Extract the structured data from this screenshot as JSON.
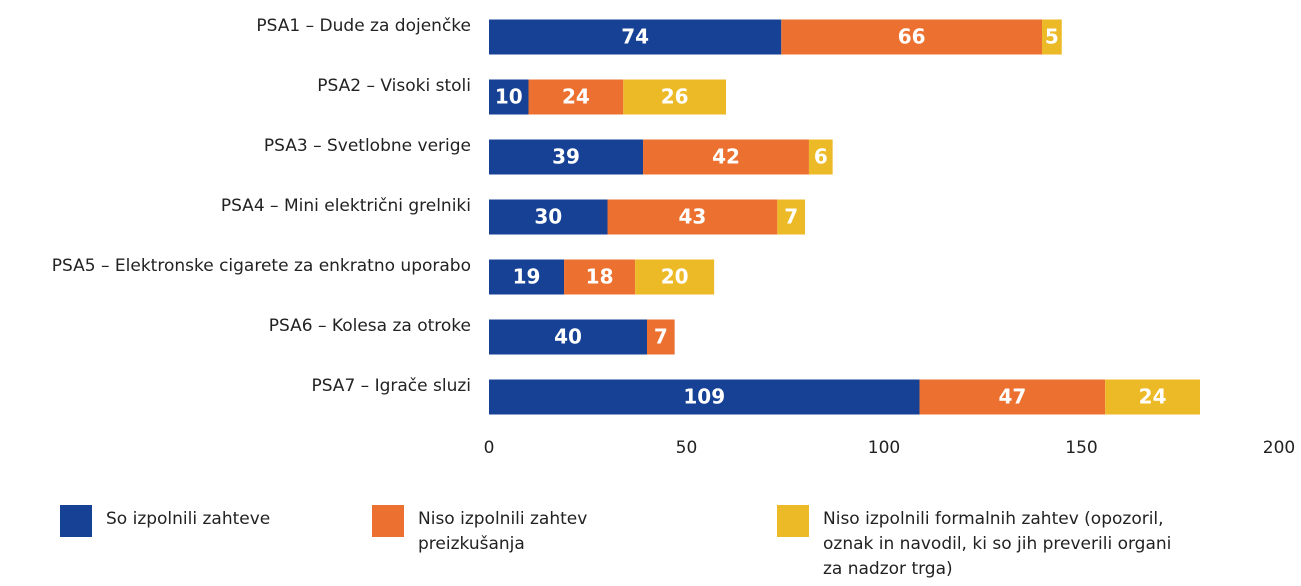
{
  "chart_data": {
    "type": "bar",
    "orientation": "horizontal",
    "stacked": true,
    "categories": [
      "PSA1 – Dude za dojenčke",
      "PSA2 – Visoki stoli",
      "PSA3 – Svetlobne verige",
      "PSA4 – Mini električni grelniki",
      "PSA5 – Elektronske cigarete za enkratno uporabo",
      "PSA6 – Kolesa za otroke",
      "PSA7 – Igrače sluzi"
    ],
    "series": [
      {
        "name": "So izpolnili zahteve",
        "color": "#164194",
        "values": [
          74,
          10,
          39,
          30,
          19,
          40,
          109
        ]
      },
      {
        "name": "Niso izpolnili zahtev preizkušanja",
        "color": "#ec7131",
        "values": [
          66,
          24,
          42,
          43,
          18,
          7,
          47
        ]
      },
      {
        "name": "Niso izpolnili formalnih zahtev (opozoril, oznak in navodil, ki so jih preverili organi za nadzor trga)",
        "color": "#ecba27",
        "values": [
          5,
          26,
          6,
          7,
          20,
          null,
          24
        ]
      }
    ],
    "xlim": [
      0,
      200
    ],
    "xticks": [
      0,
      50,
      100,
      150,
      200
    ],
    "grid": false
  }
}
